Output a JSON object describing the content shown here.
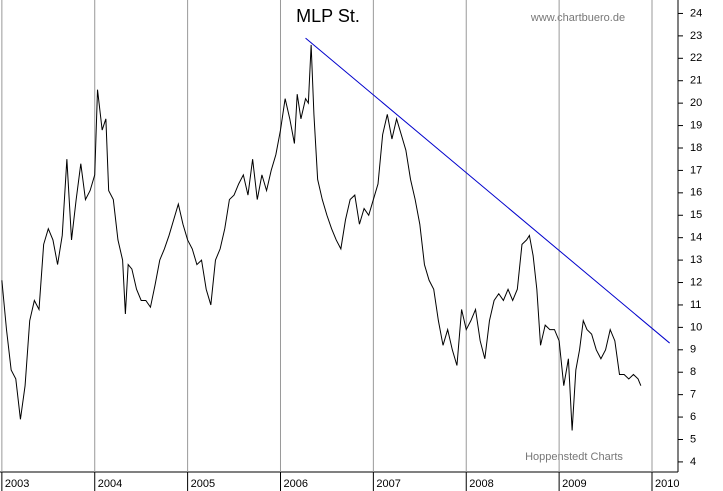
{
  "chart_data": {
    "type": "line",
    "title": "MLP St.",
    "annotations": [
      "www.chartbuero.de",
      "Hoppenstedt Charts"
    ],
    "color": "#000000",
    "x": [
      2003.0,
      2003.05,
      2003.1,
      2003.15,
      2003.2,
      2003.25,
      2003.3,
      2003.35,
      2003.4,
      2003.45,
      2003.5,
      2003.55,
      2003.6,
      2003.65,
      2003.7,
      2003.75,
      2003.8,
      2003.85,
      2003.9,
      2003.95,
      2004.0,
      2004.03,
      2004.08,
      2004.12,
      2004.15,
      2004.2,
      2004.25,
      2004.3,
      2004.33,
      2004.36,
      2004.4,
      2004.45,
      2004.5,
      2004.55,
      2004.6,
      2004.65,
      2004.7,
      2004.75,
      2004.8,
      2004.85,
      2004.9,
      2004.95,
      2005.0,
      2005.05,
      2005.1,
      2005.15,
      2005.2,
      2005.25,
      2005.3,
      2005.35,
      2005.4,
      2005.45,
      2005.5,
      2005.55,
      2005.6,
      2005.65,
      2005.7,
      2005.75,
      2005.8,
      2005.85,
      2005.9,
      2005.95,
      2006.0,
      2006.05,
      2006.1,
      2006.15,
      2006.18,
      2006.22,
      2006.27,
      2006.3,
      2006.33,
      2006.36,
      2006.4,
      2006.45,
      2006.5,
      2006.55,
      2006.6,
      2006.65,
      2006.7,
      2006.75,
      2006.8,
      2006.85,
      2006.9,
      2006.95,
      2007.0,
      2007.05,
      2007.1,
      2007.15,
      2007.2,
      2007.25,
      2007.3,
      2007.35,
      2007.4,
      2007.45,
      2007.5,
      2007.55,
      2007.6,
      2007.65,
      2007.7,
      2007.75,
      2007.8,
      2007.85,
      2007.9,
      2007.95,
      2008.0,
      2008.05,
      2008.1,
      2008.15,
      2008.2,
      2008.25,
      2008.3,
      2008.35,
      2008.4,
      2008.45,
      2008.5,
      2008.55,
      2008.6,
      2008.65,
      2008.68,
      2008.72,
      2008.76,
      2008.8,
      2008.85,
      2008.9,
      2008.95,
      2009.0,
      2009.05,
      2009.1,
      2009.14,
      2009.18,
      2009.22,
      2009.26,
      2009.3,
      2009.35,
      2009.4,
      2009.45,
      2009.5,
      2009.55,
      2009.6,
      2009.65,
      2009.7,
      2009.75,
      2009.8,
      2009.85,
      2009.88
    ],
    "values": [
      12.1,
      9.9,
      8.1,
      7.7,
      5.9,
      7.4,
      10.3,
      11.2,
      10.8,
      13.7,
      14.4,
      13.9,
      12.8,
      14.1,
      17.5,
      13.9,
      15.7,
      17.3,
      15.7,
      16.1,
      16.8,
      20.6,
      18.8,
      19.3,
      16.1,
      15.7,
      13.9,
      13.0,
      10.6,
      12.8,
      12.6,
      11.7,
      11.2,
      11.2,
      10.9,
      11.9,
      13.0,
      13.5,
      14.1,
      14.8,
      15.5,
      14.6,
      13.9,
      13.5,
      12.8,
      13.0,
      11.7,
      11.0,
      13.0,
      13.5,
      14.4,
      15.7,
      15.9,
      16.4,
      16.8,
      15.9,
      17.5,
      15.7,
      16.8,
      16.1,
      17.0,
      17.7,
      18.8,
      20.2,
      19.3,
      18.2,
      20.4,
      19.3,
      20.2,
      20.0,
      22.6,
      19.5,
      16.6,
      15.7,
      15.0,
      14.4,
      13.9,
      13.5,
      14.8,
      15.7,
      15.9,
      14.6,
      15.3,
      15.0,
      15.7,
      16.4,
      18.6,
      19.5,
      18.4,
      19.3,
      18.6,
      17.9,
      16.6,
      15.7,
      14.6,
      12.8,
      12.1,
      11.7,
      10.3,
      9.2,
      9.9,
      9.0,
      8.3,
      10.8,
      9.9,
      10.3,
      10.8,
      9.4,
      8.6,
      10.3,
      11.2,
      11.5,
      11.2,
      11.7,
      11.2,
      11.7,
      13.7,
      13.9,
      14.1,
      13.2,
      11.7,
      9.2,
      10.1,
      9.9,
      9.9,
      9.4,
      7.4,
      8.6,
      5.4,
      8.1,
      9.0,
      10.3,
      9.9,
      9.7,
      9.0,
      8.6,
      9.0,
      9.9,
      9.4,
      7.9,
      7.9,
      7.7,
      7.9,
      7.7,
      7.4
    ],
    "trendline": {
      "x": [
        2006.27,
        2010.19
      ],
      "values": [
        22.9,
        9.3
      ],
      "color": "#0000cc"
    },
    "xlim": [
      2002.98,
      2010.28
    ],
    "xticks": [
      2003,
      2004,
      2005,
      2006,
      2007,
      2008,
      2009,
      2010
    ],
    "ylim": [
      3.55,
      24.6
    ],
    "yticks": [
      4,
      5,
      6,
      7,
      8,
      9,
      10,
      11,
      12,
      13,
      14,
      15,
      16,
      17,
      18,
      19,
      20,
      21,
      22,
      23,
      24
    ],
    "grid": true
  }
}
